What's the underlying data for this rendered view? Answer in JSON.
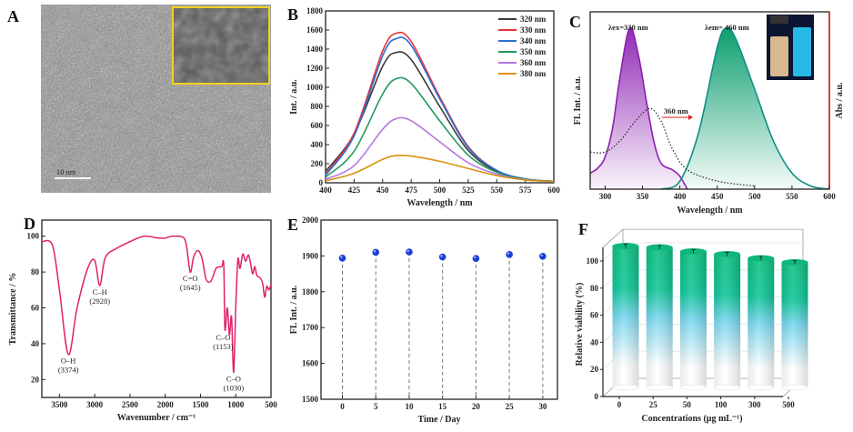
{
  "panels": {
    "a": "A",
    "b": "B",
    "c": "C",
    "d": "D",
    "e": "E",
    "f": "F"
  },
  "tem": {
    "scale_bar": "10 nm",
    "inset_border_color": "#f2d21b"
  },
  "chart_data": [
    {
      "panel": "B",
      "type": "line",
      "xlabel": "Wavelength / nm",
      "ylabel": "Int. / a.u.",
      "xlim": [
        400,
        600
      ],
      "ylim": [
        0,
        1800
      ],
      "xticks": [
        400,
        425,
        450,
        475,
        500,
        525,
        550,
        575,
        600
      ],
      "yticks": [
        0,
        200,
        400,
        600,
        800,
        1000,
        1200,
        1400,
        1600,
        1800
      ],
      "legend": "top-right",
      "x": [
        400,
        425,
        450,
        462,
        475,
        500,
        525,
        550,
        575,
        600
      ],
      "series": [
        {
          "name": "320 nm",
          "color": "#3a3a3a",
          "values": [
            120,
            510,
            1220,
            1365,
            1290,
            800,
            340,
            120,
            40,
            15
          ]
        },
        {
          "name": "330 nm",
          "color": "#e8333a",
          "values": [
            90,
            520,
            1380,
            1565,
            1480,
            900,
            380,
            130,
            40,
            15
          ]
        },
        {
          "name": "340 nm",
          "color": "#2a6fd6",
          "values": [
            80,
            490,
            1330,
            1510,
            1440,
            880,
            370,
            130,
            40,
            15
          ]
        },
        {
          "name": "350 nm",
          "color": "#1f9a5a",
          "values": [
            60,
            330,
            930,
            1090,
            1040,
            650,
            290,
            110,
            35,
            15
          ]
        },
        {
          "name": "360 nm",
          "color": "#b678e0",
          "values": [
            35,
            180,
            560,
            672,
            650,
            430,
            210,
            90,
            30,
            12
          ]
        },
        {
          "name": "380 nm",
          "color": "#d9940f",
          "values": [
            20,
            100,
            245,
            285,
            280,
            225,
            150,
            75,
            30,
            12
          ]
        }
      ]
    },
    {
      "panel": "C",
      "type": "area",
      "xlabel": "Wavelength / nm",
      "ylabel": "FL Int. / a.u.",
      "ylabel_right": "Abs / a.u.",
      "xlim": [
        280,
        600
      ],
      "ylim": [
        0,
        1.1
      ],
      "xticks": [
        300,
        350,
        400,
        450,
        500,
        550,
        600
      ],
      "annotations": {
        "ex": "λex=330 nm",
        "em": "λem= 460 nm",
        "shift": "360 nm"
      },
      "series": [
        {
          "role": "excitation",
          "color": "#8b1fb0",
          "x": [
            280,
            290,
            300,
            310,
            320,
            333,
            345,
            355,
            365,
            375,
            390,
            400,
            410
          ],
          "values": [
            0.1,
            0.13,
            0.2,
            0.38,
            0.7,
            1.0,
            0.82,
            0.55,
            0.3,
            0.16,
            0.12,
            0.08,
            0.0
          ]
        },
        {
          "role": "emission",
          "color": "#0f8f80",
          "x": [
            375,
            400,
            425,
            450,
            462,
            475,
            500,
            525,
            550,
            575,
            600
          ],
          "values": [
            0,
            0.05,
            0.35,
            0.88,
            1,
            0.93,
            0.62,
            0.3,
            0.1,
            0.02,
            0
          ]
        },
        {
          "role": "absorption",
          "color": "#222222",
          "x": [
            280,
            300,
            320,
            340,
            360,
            375,
            390,
            410,
            450,
            500
          ],
          "values": [
            0.23,
            0.23,
            0.3,
            0.42,
            0.5,
            0.42,
            0.25,
            0.12,
            0.05,
            0.02
          ]
        }
      ]
    },
    {
      "panel": "D",
      "type": "line",
      "xlabel": "Wavenumber / cm⁻¹",
      "ylabel": "Transmittance / %",
      "xlim": [
        3750,
        500
      ],
      "ylim": [
        10,
        109
      ],
      "xticks": [
        3500,
        3000,
        2500,
        2000,
        1500,
        1000,
        500
      ],
      "yticks": [
        20,
        40,
        60,
        80,
        100
      ],
      "color": "#e0206a",
      "x": [
        3750,
        3600,
        3500,
        3374,
        3250,
        3100,
        3000,
        2928,
        2850,
        2700,
        2500,
        2300,
        2100,
        2000,
        1900,
        1750,
        1700,
        1645,
        1600,
        1540,
        1480,
        1420,
        1350,
        1280,
        1200,
        1170,
        1153,
        1120,
        1090,
        1060,
        1030,
        1000,
        970,
        940,
        900,
        860,
        820,
        790,
        760,
        730,
        700,
        660,
        620,
        590,
        560,
        530,
        500
      ],
      "values": [
        97,
        95,
        70,
        34,
        60,
        82,
        86.5,
        72.5,
        88,
        93,
        97,
        100,
        99,
        99,
        100,
        99.5,
        95,
        80,
        88,
        92,
        88,
        76,
        75,
        82,
        83,
        84,
        48,
        60,
        45,
        55,
        24,
        60,
        87,
        82,
        90,
        86,
        89.5,
        85,
        79,
        83,
        78,
        77,
        74,
        66,
        72,
        70,
        73
      ],
      "peaks": [
        {
          "label": "O–H",
          "value": "(3374)",
          "x": 3374,
          "y": 34
        },
        {
          "label": "C–H",
          "value": "(2928)",
          "x": 2928,
          "y": 72.5
        },
        {
          "label": "C=O",
          "value": "(1645)",
          "x": 1645,
          "y": 80
        },
        {
          "label": "C–O",
          "value": "(1153)",
          "x": 1153,
          "y": 48
        },
        {
          "label": "C–O",
          "value": "(1030)",
          "x": 1030,
          "y": 24
        }
      ]
    },
    {
      "panel": "E",
      "type": "scatter",
      "xlabel": "Time / Day",
      "ylabel": "FL Int. / a.u.",
      "xlim": [
        -3.2,
        32.2
      ],
      "ylim": [
        1500,
        2000
      ],
      "xticks": [
        0,
        5,
        10,
        15,
        20,
        25,
        30
      ],
      "yticks": [
        1500,
        1600,
        1700,
        1800,
        1900,
        2000
      ],
      "color": "#1a3fd6",
      "x": [
        0,
        5,
        10,
        15,
        20,
        25,
        30
      ],
      "values": [
        1894,
        1910,
        1911,
        1897,
        1893,
        1904,
        1899
      ]
    },
    {
      "panel": "F",
      "type": "bar",
      "xlabel": "Concentrations (μg mL⁻¹)",
      "ylabel": "Relative viability (%)",
      "ylim": [
        0,
        110
      ],
      "yticks": [
        0,
        20,
        40,
        60,
        80,
        100
      ],
      "categories": [
        "0",
        "25",
        "50",
        "100",
        "300",
        "500"
      ],
      "values": [
        105,
        104,
        101,
        99,
        96,
        93
      ],
      "colors": {
        "top": "#10c082",
        "mid": "#7ad8f0",
        "bottom": "#ffffff"
      }
    }
  ]
}
